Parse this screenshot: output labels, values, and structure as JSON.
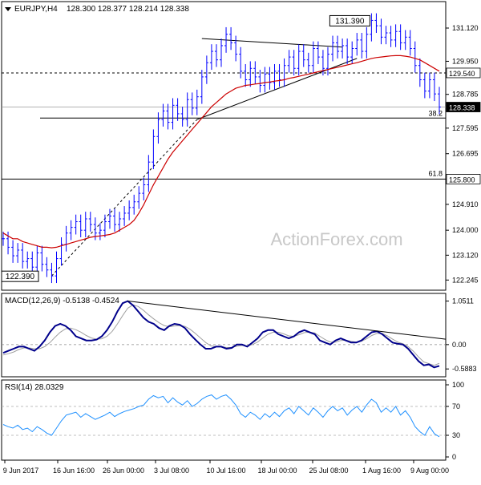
{
  "header": {
    "symbol_label": "EURJPY,H4",
    "ohlc_label": "128.300 128.377 128.214 128.338"
  },
  "watermark": "ActionForex.com",
  "colors": {
    "candle": "#0000ff",
    "ma": "#cc0000",
    "macd_line": "#00008b",
    "macd_signal": "#a0a0a0",
    "rsi": "#1e90ff",
    "trendline": "#000000",
    "level_line": "#000000",
    "last_price_box": "#ffffff"
  },
  "chart_data": [
    {
      "type": "line",
      "title": "EURJPY,H4 128.300 128.377 128.214 128.338",
      "y_ticks": [
        "131.120",
        "129.950",
        "128.785",
        "127.595",
        "126.695",
        "125.800",
        "124.910",
        "124.000",
        "123.120",
        "122.245"
      ],
      "ylim": [
        122.0,
        131.6
      ],
      "x_ticks": [
        "9 Jun 2017",
        "16 Jun 16:00",
        "26 Jun 00:00",
        "3 Jul 08:00",
        "10 Jul 16:00",
        "18 Jul 00:00",
        "25 Jul 08:00",
        "1 Aug 16:00",
        "9 Aug 00:00"
      ],
      "series": [
        {
          "values": [
            123.7,
            123.4,
            123.1,
            123.3,
            122.9,
            123.0,
            122.7,
            123.2,
            122.8,
            122.6,
            122.39,
            123.0,
            123.5,
            123.9,
            124.1,
            124.3,
            124.0,
            124.4,
            124.2,
            123.9,
            124.0,
            124.3,
            124.5,
            124.2,
            124.4,
            124.6,
            124.8,
            125.0,
            125.3,
            125.6,
            126.4,
            127.3,
            127.9,
            128.2,
            127.8,
            128.4,
            128.1,
            127.9,
            128.6,
            128.3,
            128.7,
            129.4,
            129.9,
            130.3,
            130.0,
            130.5,
            130.9,
            130.6,
            130.2,
            129.6,
            129.3,
            129.7,
            129.4,
            129.1,
            129.5,
            129.2,
            129.6,
            129.3,
            129.8,
            130.1,
            129.7,
            130.3,
            130.0,
            129.8,
            130.4,
            130.1,
            129.7,
            130.2,
            130.6,
            130.3,
            130.5,
            130.1,
            130.4,
            130.7,
            130.3,
            130.9,
            131.39,
            131.2,
            130.8,
            130.95,
            130.7,
            131.0,
            130.6,
            130.8,
            130.4,
            129.8,
            129.3,
            128.9,
            129.3,
            128.8,
            128.338
          ]
        },
        {
          "values": [
            123.9,
            123.8,
            123.7,
            123.7,
            123.6,
            123.55,
            123.5,
            123.45,
            123.4,
            123.4,
            123.38,
            123.4,
            123.45,
            123.5,
            123.55,
            123.6,
            123.65,
            123.7,
            123.75,
            123.78,
            123.8,
            123.82,
            123.85,
            123.9,
            124.0,
            124.1,
            124.2,
            124.35,
            124.6,
            124.9,
            125.25,
            125.6,
            125.9,
            126.2,
            126.5,
            126.75,
            126.95,
            127.15,
            127.35,
            127.55,
            127.75,
            127.95,
            128.15,
            128.35,
            128.5,
            128.65,
            128.8,
            128.9,
            129.0,
            129.05,
            129.1,
            129.12,
            129.15,
            129.17,
            129.2,
            129.22,
            129.25,
            129.27,
            129.3,
            129.35,
            129.38,
            129.42,
            129.46,
            129.5,
            129.54,
            129.58,
            129.62,
            129.66,
            129.7,
            129.74,
            129.78,
            129.82,
            129.86,
            129.9,
            129.95,
            130.0,
            130.05,
            130.08,
            130.1,
            130.12,
            130.14,
            130.15,
            130.15,
            130.13,
            130.1,
            130.05,
            130.0,
            129.9,
            129.8,
            129.7,
            129.6
          ]
        }
      ],
      "annotations": {
        "high_label": "131.390",
        "low_label": "122.390",
        "last_price": "128.338",
        "level_129_label": "129.540",
        "level_125_label": "125.800",
        "fib_382_label": "38.2",
        "fib_618_label": "61.8"
      },
      "levels": {
        "resistance_dashed": 129.54,
        "support_618": 125.8,
        "fib_382": 127.95
      }
    },
    {
      "type": "line",
      "title": "MACD(12,26,9) -0.5138 -0.4524",
      "y_ticks": [
        "1.0511",
        "0.00",
        "-0.5883"
      ],
      "ylim": [
        -0.7,
        1.12
      ],
      "series": [
        {
          "values": [
            -0.2,
            -0.15,
            -0.1,
            -0.05,
            -0.05,
            -0.1,
            -0.15,
            -0.05,
            0.1,
            0.3,
            0.45,
            0.5,
            0.45,
            0.35,
            0.2,
            0.15,
            0.1,
            0.1,
            0.12,
            0.2,
            0.35,
            0.55,
            0.8,
            1.0,
            1.0511,
            0.95,
            0.8,
            0.65,
            0.55,
            0.5,
            0.4,
            0.35,
            0.45,
            0.5,
            0.48,
            0.4,
            0.25,
            0.12,
            0.0,
            -0.1,
            -0.1,
            -0.05,
            -0.05,
            -0.1,
            -0.08,
            0.0,
            0.0,
            -0.05,
            0.05,
            0.15,
            0.3,
            0.35,
            0.35,
            0.25,
            0.2,
            0.15,
            0.2,
            0.3,
            0.35,
            0.3,
            0.25,
            0.1,
            0.05,
            0.0,
            0.1,
            0.15,
            0.1,
            0.05,
            0.05,
            0.1,
            0.2,
            0.3,
            0.32,
            0.25,
            0.15,
            0.05,
            0.02,
            0.0,
            -0.1,
            -0.25,
            -0.4,
            -0.5,
            -0.48,
            -0.55,
            -0.5138
          ]
        },
        {
          "values": [
            -0.25,
            -0.22,
            -0.18,
            -0.12,
            -0.08,
            -0.08,
            -0.1,
            -0.1,
            -0.05,
            0.05,
            0.18,
            0.3,
            0.38,
            0.4,
            0.36,
            0.3,
            0.22,
            0.16,
            0.13,
            0.14,
            0.2,
            0.32,
            0.5,
            0.7,
            0.88,
            0.96,
            0.92,
            0.83,
            0.72,
            0.62,
            0.53,
            0.46,
            0.43,
            0.45,
            0.46,
            0.44,
            0.37,
            0.27,
            0.16,
            0.05,
            -0.03,
            -0.05,
            -0.05,
            -0.07,
            -0.07,
            -0.04,
            -0.02,
            -0.03,
            0.0,
            0.06,
            0.16,
            0.25,
            0.3,
            0.3,
            0.26,
            0.21,
            0.2,
            0.24,
            0.29,
            0.3,
            0.28,
            0.2,
            0.12,
            0.06,
            0.06,
            0.1,
            0.11,
            0.08,
            0.06,
            0.08,
            0.14,
            0.22,
            0.27,
            0.27,
            0.21,
            0.13,
            0.06,
            0.02,
            -0.05,
            -0.16,
            -0.3,
            -0.42,
            -0.46,
            -0.5,
            -0.4524
          ]
        }
      ]
    },
    {
      "type": "line",
      "title": "RSI(14) 28.0329",
      "y_ticks": [
        "100",
        "70",
        "30",
        "0"
      ],
      "ylim": [
        0,
        100
      ],
      "series": [
        {
          "values": [
            45,
            42,
            40,
            44,
            38,
            40,
            35,
            42,
            38,
            33,
            30,
            40,
            50,
            58,
            60,
            62,
            55,
            60,
            56,
            52,
            55,
            58,
            62,
            56,
            60,
            63,
            65,
            67,
            70,
            72,
            80,
            85,
            82,
            84,
            75,
            82,
            76,
            72,
            78,
            70,
            74,
            80,
            84,
            86,
            80,
            84,
            86,
            80,
            72,
            60,
            55,
            62,
            58,
            52,
            60,
            55,
            62,
            56,
            64,
            68,
            60,
            70,
            64,
            58,
            68,
            62,
            55,
            64,
            70,
            64,
            68,
            58,
            65,
            70,
            62,
            72,
            80,
            75,
            62,
            68,
            62,
            70,
            58,
            64,
            55,
            42,
            35,
            30,
            42,
            32,
            28.0329
          ]
        }
      ],
      "levels": [
        70,
        30
      ]
    }
  ],
  "x_axis_labels": [
    "9 Jun 2017",
    "16 Jun 16:00",
    "26 Jun 00:00",
    "3 Jul 08:00",
    "10 Jul 16:00",
    "18 Jul 00:00",
    "25 Jul 08:00",
    "1 Aug 16:00",
    "9 Aug 00:00"
  ]
}
